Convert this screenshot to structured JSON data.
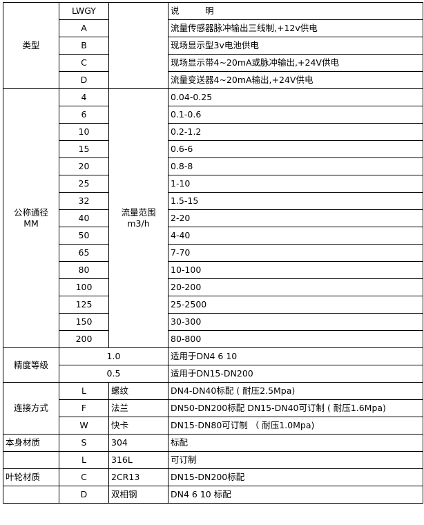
{
  "header": {
    "code": "LWGY",
    "desc": "说　　　明"
  },
  "type": {
    "label": "类型",
    "items": [
      {
        "code": "A",
        "desc": "流量传感器脉冲输出三线制,+12v供电"
      },
      {
        "code": "B",
        "desc": "现场显示型3v电池供电"
      },
      {
        "code": "C",
        "desc": "现场显示带4~20mA或脉冲输出,+24V供电"
      },
      {
        "code": "D",
        "desc": "流量变送器4~20mA输出,+24V供电"
      }
    ]
  },
  "diameter": {
    "label": "公称通径",
    "unit": "MM",
    "range_label": "流量范围",
    "range_unit": "m3/h",
    "items": [
      {
        "size": "4",
        "range": "0.04-0.25"
      },
      {
        "size": "6",
        "range": "0.1-0.6"
      },
      {
        "size": "10",
        "range": "0.2-1.2"
      },
      {
        "size": "15",
        "range": "0.6-6"
      },
      {
        "size": "20",
        "range": "0.8-8"
      },
      {
        "size": "25",
        "range": "1-10"
      },
      {
        "size": "32",
        "range": "1.5-15"
      },
      {
        "size": "40",
        "range": "2-20"
      },
      {
        "size": "50",
        "range": "4-40"
      },
      {
        "size": "65",
        "range": "7-70"
      },
      {
        "size": "80",
        "range": "10-100"
      },
      {
        "size": "100",
        "range": "20-200"
      },
      {
        "size": "125",
        "range": "25-2500"
      },
      {
        "size": "150",
        "range": "30-300"
      },
      {
        "size": "200",
        "range": "80-800"
      }
    ]
  },
  "accuracy": {
    "label": "精度等级",
    "items": [
      {
        "grade": "1.0",
        "desc": "适用于DN4  6  10"
      },
      {
        "grade": "0.5",
        "desc": "适用于DN15-DN200"
      }
    ]
  },
  "connection": {
    "label": "连接方式",
    "items": [
      {
        "code": "L",
        "name": "螺纹",
        "desc": "DN4-DN40标配 ( 耐压2.5Mpa)"
      },
      {
        "code": "F",
        "name": "法兰",
        "desc": "DN50-DN200标配 DN15-DN40可订制 ( 耐压1.6Mpa)"
      },
      {
        "code": "W",
        "name": "快卡",
        "desc": "DN15-DN80可订制 （ 耐压1.0Mpa)"
      }
    ]
  },
  "body_material": {
    "label": "本身材质",
    "items": [
      {
        "code": "S",
        "name": "304",
        "desc": "标配"
      },
      {
        "code": "L",
        "name": "316L",
        "desc": "可订制"
      }
    ]
  },
  "impeller_material": {
    "label": "叶轮材质",
    "items": [
      {
        "code": "C",
        "name": "2CR13",
        "desc": "DN15-DN200标配"
      },
      {
        "code": "D",
        "name": "双相钢",
        "desc": "DN4 6 10 标配"
      }
    ]
  }
}
